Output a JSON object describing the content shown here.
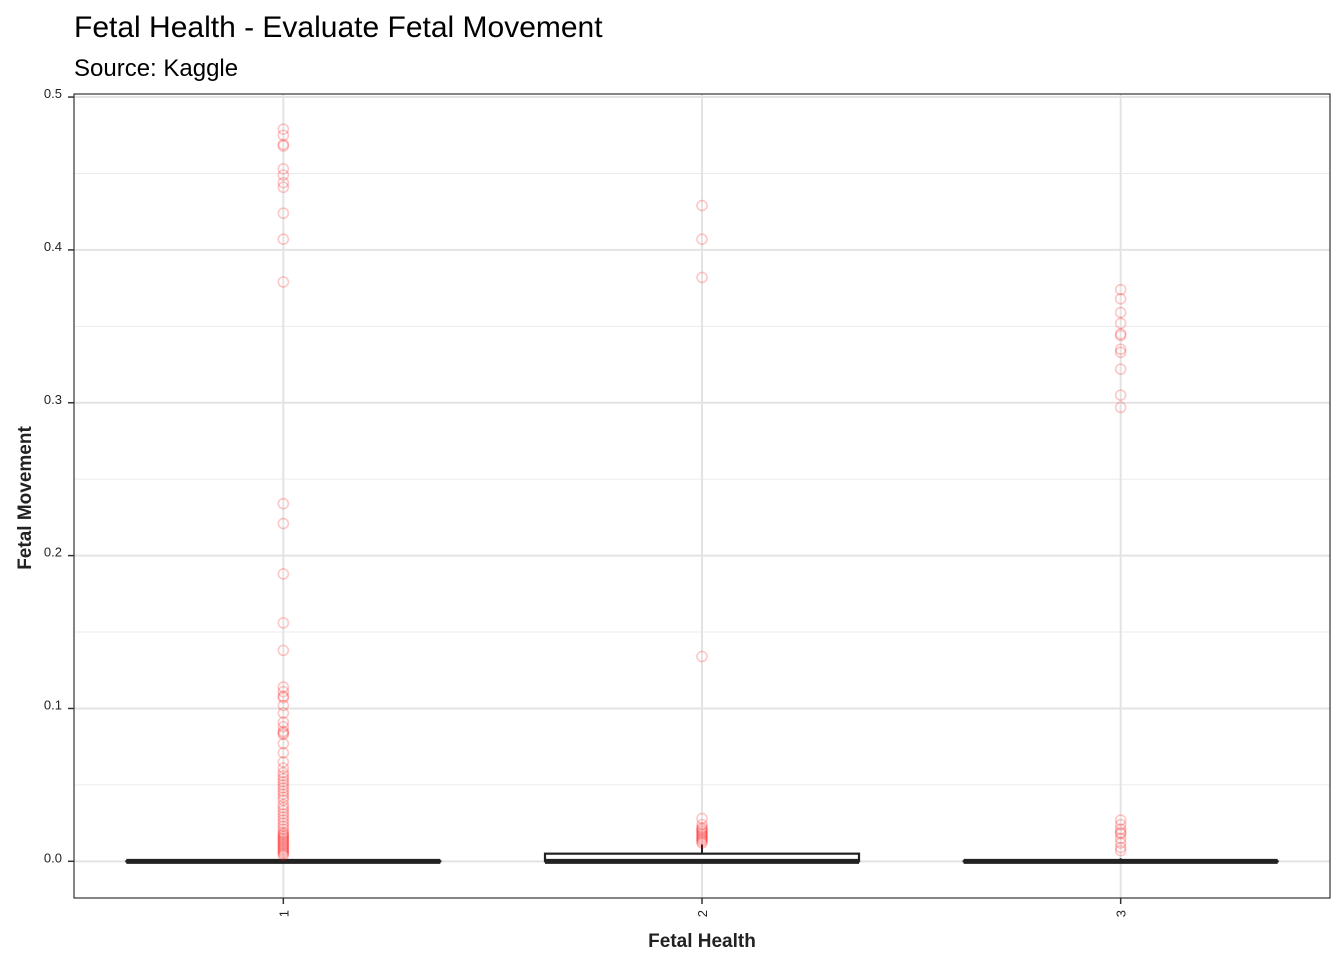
{
  "chart_data": {
    "type": "box",
    "title": "Fetal Health - Evaluate Fetal Movement",
    "subtitle": "Source: Kaggle",
    "xlabel": "Fetal Health",
    "ylabel": "Fetal Movement",
    "categories": [
      "1",
      "2",
      "3"
    ],
    "ylim": [
      -0.024,
      0.502
    ],
    "yticks": [
      0.0,
      0.1,
      0.2,
      0.3,
      0.4,
      0.5
    ],
    "ytick_labels": [
      "0.0",
      "0.1",
      "0.2",
      "0.3",
      "0.4",
      "0.5"
    ],
    "grid": true,
    "outlier_color": "#ff0000",
    "box_color": "#222222",
    "boxes": [
      {
        "category": "1",
        "q1": 0.0,
        "median": 0.0,
        "q3": 0.0,
        "whisker_low": 0.0,
        "whisker_high": 0.0,
        "outliers": [
          0.479,
          0.475,
          0.469,
          0.468,
          0.453,
          0.449,
          0.444,
          0.441,
          0.424,
          0.407,
          0.379,
          0.234,
          0.221,
          0.188,
          0.156,
          0.138,
          0.114,
          0.111,
          0.108,
          0.107,
          0.102,
          0.097,
          0.091,
          0.088,
          0.085,
          0.084,
          0.083,
          0.077,
          0.071,
          0.065,
          0.061,
          0.058,
          0.056,
          0.054,
          0.052,
          0.05,
          0.048,
          0.046,
          0.044,
          0.042,
          0.04,
          0.037,
          0.035,
          0.033,
          0.031,
          0.029,
          0.027,
          0.025,
          0.023,
          0.021,
          0.019,
          0.018,
          0.017,
          0.016,
          0.015,
          0.014,
          0.013,
          0.012,
          0.011,
          0.01,
          0.009,
          0.008,
          0.007,
          0.006,
          0.005,
          0.004
        ]
      },
      {
        "category": "2",
        "q1": 0.0,
        "median": 0.0,
        "q3": 0.005,
        "whisker_low": 0.0,
        "whisker_high": 0.011,
        "outliers": [
          0.429,
          0.407,
          0.382,
          0.134,
          0.028,
          0.024,
          0.022,
          0.021,
          0.02,
          0.019,
          0.018,
          0.017,
          0.016,
          0.015,
          0.014,
          0.013,
          0.012
        ]
      },
      {
        "category": "3",
        "q1": 0.0,
        "median": 0.0,
        "q3": 0.0,
        "whisker_low": 0.0,
        "whisker_high": 0.002,
        "outliers": [
          0.374,
          0.368,
          0.359,
          0.352,
          0.345,
          0.344,
          0.335,
          0.333,
          0.322,
          0.305,
          0.297,
          0.027,
          0.024,
          0.021,
          0.019,
          0.018,
          0.015,
          0.012,
          0.009,
          0.007
        ]
      }
    ]
  }
}
